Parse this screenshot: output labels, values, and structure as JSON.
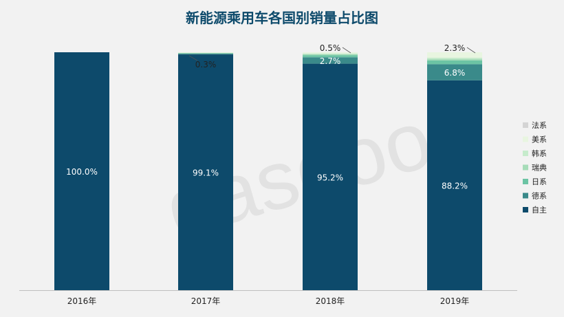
{
  "chart_data": {
    "type": "bar",
    "stacked": true,
    "percent": true,
    "title": "新能源乘用车各国别销量占比图",
    "categories": [
      "2016年",
      "2017年",
      "2018年",
      "2019年"
    ],
    "series": [
      {
        "name": "自主",
        "color": "#0d4a6b",
        "values": [
          100.0,
          99.1,
          95.2,
          88.2
        ]
      },
      {
        "name": "德系",
        "color": "#3a8a8a",
        "values": [
          0.0,
          0.3,
          2.7,
          6.8
        ]
      },
      {
        "name": "日系",
        "color": "#6cc4a4",
        "values": [
          0.0,
          0.2,
          0.9,
          1.6
        ]
      },
      {
        "name": "瑞典",
        "color": "#a6dcb8",
        "values": [
          0.0,
          0.1,
          0.4,
          0.6
        ]
      },
      {
        "name": "韩系",
        "color": "#c6ebcc",
        "values": [
          0.0,
          0.1,
          0.3,
          0.5
        ]
      },
      {
        "name": "美系",
        "color": "#e8f5e0",
        "values": [
          0.0,
          0.2,
          0.5,
          2.3
        ]
      },
      {
        "name": "法系",
        "color": "#d4d4d4",
        "values": [
          0.0,
          0.0,
          0.0,
          0.0
        ]
      }
    ],
    "data_labels": [
      {
        "category": 0,
        "series": "自主",
        "text": "100.0%"
      },
      {
        "category": 1,
        "series": "自主",
        "text": "99.1%"
      },
      {
        "category": 1,
        "series": "德系",
        "text": "0.3%"
      },
      {
        "category": 2,
        "series": "自主",
        "text": "95.2%"
      },
      {
        "category": 2,
        "series": "德系",
        "text": "2.7%"
      },
      {
        "category": 2,
        "series": "美系",
        "text": "0.5%"
      },
      {
        "category": 3,
        "series": "自主",
        "text": "88.2%"
      },
      {
        "category": 3,
        "series": "德系",
        "text": "6.8%"
      },
      {
        "category": 3,
        "series": "美系",
        "text": "2.3%"
      }
    ],
    "ylim": [
      0,
      100
    ],
    "grid": false,
    "legend_position": "right",
    "legend_order": [
      "法系",
      "美系",
      "韩系",
      "瑞典",
      "日系",
      "德系",
      "自主"
    ]
  },
  "watermark": "盖世汽车 gasgoo"
}
